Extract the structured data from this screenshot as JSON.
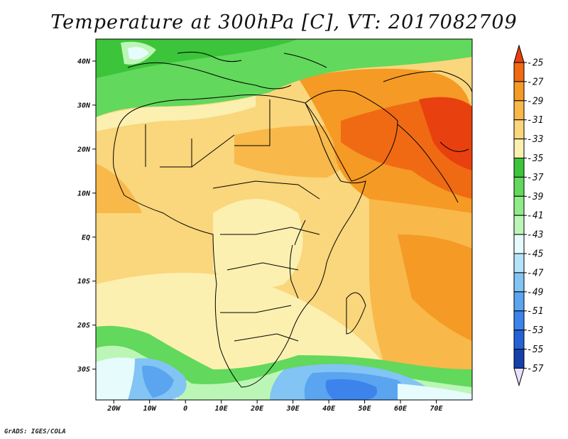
{
  "title": "Temperature at 300hPa [C], VT: 2017082709",
  "credit": "GrADS: IGES/COLA",
  "map": {
    "lon_labels": [
      "20W",
      "10W",
      "0",
      "10E",
      "20E",
      "30E",
      "40E",
      "50E",
      "60E",
      "70E"
    ],
    "lat_labels": [
      "40N",
      "30N",
      "20N",
      "10N",
      "EQ",
      "10S",
      "20S",
      "30S"
    ]
  },
  "colorbar": {
    "levels": [
      "-25",
      "-27",
      "-29",
      "-31",
      "-33",
      "-35",
      "-37",
      "-39",
      "-41",
      "-43",
      "-45",
      "-47",
      "-49",
      "-51",
      "-53",
      "-55",
      "-57"
    ],
    "colors": [
      "#e8400e",
      "#f06a14",
      "#f59a24",
      "#f8b84a",
      "#fad67c",
      "#fbf0b0",
      "#3cc43a",
      "#62d85c",
      "#90ec88",
      "#bcf6b6",
      "#e6fcfc",
      "#b4e4fc",
      "#82c4f4",
      "#5aa4f0",
      "#3c84ec",
      "#2462d6",
      "#1440a8",
      "#0a1c6a"
    ],
    "upper_color": "#e8400e",
    "lower_color": "#e8e0fc"
  }
}
